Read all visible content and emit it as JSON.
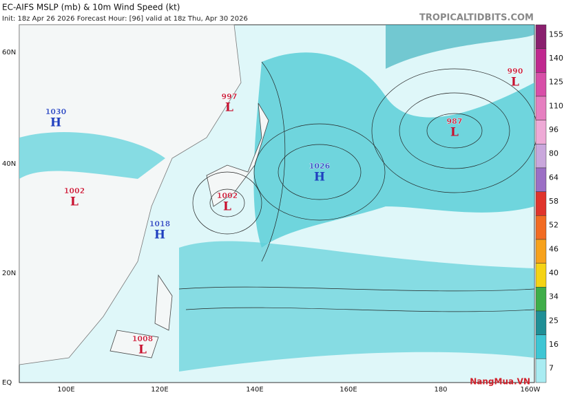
{
  "header": {
    "title": "EC-AIFS MSLP (mb) & 10m Wind Speed (kt)",
    "subtitle": "Init: 18z Apr 26 2026   Forecast Hour: [96]   valid at 18z Thu, Apr 30 2026",
    "site": "TROPICALTIDBITS.COM"
  },
  "latitude_labels": [
    "60N",
    "40N",
    "20N",
    "EQ"
  ],
  "longitude_labels": [
    "100E",
    "120E",
    "140E",
    "160E",
    "180",
    "160W"
  ],
  "colorbar": {
    "labels": [
      "155",
      "140",
      "125",
      "110",
      "96",
      "80",
      "64",
      "58",
      "52",
      "46",
      "40",
      "34",
      "25",
      "16",
      "7"
    ],
    "colors": [
      "#8a1f6e",
      "#c0288f",
      "#d84fa8",
      "#e67fc0",
      "#eeaad6",
      "#c9a7dc",
      "#9b6fc5",
      "#e0342c",
      "#f26b22",
      "#f7a21c",
      "#f5d315",
      "#3fae49",
      "#1f8f96",
      "#3ec6d4",
      "#a9ecf2"
    ]
  },
  "pressure_centers": [
    {
      "value": "1030",
      "letter": "H"
    },
    {
      "value": "1002",
      "letter": "L"
    },
    {
      "value": "1018",
      "letter": "H"
    },
    {
      "value": "997",
      "letter": "L"
    },
    {
      "value": "1002",
      "letter": "L"
    },
    {
      "value": "1026",
      "letter": "H"
    },
    {
      "value": "987",
      "letter": "L"
    },
    {
      "value": "990",
      "letter": "L"
    },
    {
      "value": "1008",
      "letter": "L"
    }
  ],
  "watermark": "NangMua.VN"
}
